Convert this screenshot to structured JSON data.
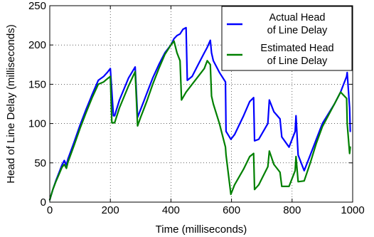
{
  "chart_data": {
    "type": "line",
    "xlabel": "Time (milliseconds)",
    "ylabel": "Head of Line Delay (milliseconds)",
    "xlim": [
      0,
      1000
    ],
    "ylim": [
      0,
      250
    ],
    "xticks": [
      0,
      200,
      400,
      600,
      800,
      1000
    ],
    "yticks": [
      0,
      50,
      100,
      150,
      200,
      250
    ],
    "grid": true,
    "legend_position": "top-right",
    "series": [
      {
        "name": "Actual Head\nof Line Delay",
        "color": "#0000ff",
        "x": [
          0,
          10,
          20,
          30,
          40,
          48,
          55,
          60,
          80,
          100,
          120,
          140,
          160,
          178,
          190,
          200,
          210,
          214,
          230,
          260,
          282,
          290,
          300,
          310,
          320,
          340,
          360,
          380,
          400,
          410,
          420,
          430,
          440,
          450,
          454,
          470,
          490,
          510,
          520,
          530,
          534,
          540,
          560,
          580,
          582,
          598,
          610,
          640,
          660,
          673,
          676,
          690,
          720,
          725,
          740,
          760,
          766,
          790,
          810,
          813,
          820,
          840,
          860,
          880,
          900,
          940,
          960,
          980,
          982,
          990,
          992
        ],
        "y": [
          3,
          16,
          27,
          37,
          47,
          53,
          47,
          55,
          76,
          98,
          118,
          137,
          155,
          160,
          165,
          170,
          110,
          110,
          130,
          158,
          172,
          108,
          118,
          128,
          138,
          158,
          175,
          190,
          200,
          208,
          212,
          214,
          220,
          222,
          155,
          160,
          175,
          190,
          197,
          206,
          190,
          180,
          165,
          153,
          90,
          80,
          86,
          110,
          128,
          133,
          78,
          80,
          100,
          130,
          115,
          106,
          83,
          70,
          90,
          110,
          60,
          40,
          60,
          80,
          100,
          125,
          140,
          160,
          165,
          120,
          90
        ]
      },
      {
        "name": "Estimated Head\nof Line Delay",
        "color": "#008000",
        "x": [
          0,
          10,
          20,
          30,
          40,
          48,
          55,
          60,
          80,
          100,
          120,
          140,
          160,
          178,
          190,
          200,
          205,
          214,
          230,
          260,
          282,
          290,
          300,
          310,
          320,
          340,
          360,
          380,
          400,
          410,
          420,
          430,
          435,
          450,
          470,
          490,
          510,
          520,
          530,
          534,
          540,
          560,
          580,
          582,
          598,
          610,
          640,
          660,
          673,
          676,
          690,
          720,
          725,
          740,
          760,
          766,
          790,
          810,
          813,
          820,
          840,
          860,
          880,
          900,
          940,
          960,
          980,
          982,
          990,
          992
        ],
        "y": [
          3,
          16,
          26,
          35,
          44,
          48,
          43,
          51,
          72,
          94,
          114,
          133,
          150,
          153,
          157,
          160,
          101,
          101,
          120,
          148,
          166,
          97,
          108,
          118,
          128,
          150,
          170,
          188,
          200,
          205,
          190,
          180,
          130,
          140,
          150,
          160,
          170,
          180,
          175,
          135,
          125,
          100,
          70,
          60,
          10,
          22,
          42,
          58,
          62,
          16,
          22,
          45,
          65,
          48,
          38,
          20,
          20,
          40,
          58,
          26,
          27,
          50,
          75,
          96,
          125,
          140,
          132,
          100,
          62,
          70
        ]
      }
    ]
  }
}
